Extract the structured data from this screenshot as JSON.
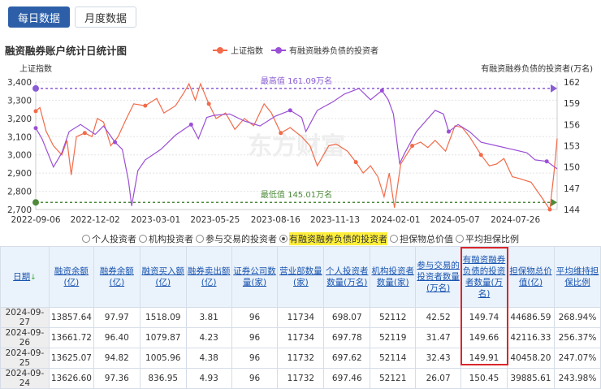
{
  "tabs": [
    {
      "label": "每日数据",
      "active": true
    },
    {
      "label": "月度数据",
      "active": false
    }
  ],
  "chart_data": {
    "type": "line",
    "title": "融资融券账户统计日统计图",
    "legend": [
      "上证指数",
      "有融资融券负债的投资者"
    ],
    "ylabel_left": "上证指数",
    "ylabel_right": "有融资融券负债的投资者(万名)",
    "ylim_left": [
      2700,
      3400
    ],
    "ylim_right": [
      144,
      162
    ],
    "yticks_left": [
      "3,400",
      "3,300",
      "3,200",
      "3,100",
      "3,000",
      "2,900",
      "2,800",
      "2,700"
    ],
    "yticks_right": [
      "162",
      "159",
      "156",
      "153",
      "150",
      "147",
      "144"
    ],
    "xlim": [
      0,
      500
    ],
    "xticks": [
      {
        "i": 0,
        "label": "2022-09-06"
      },
      {
        "i": 57,
        "label": "2022-12-02"
      },
      {
        "i": 115,
        "label": "2023-03-01"
      },
      {
        "i": 172,
        "label": "2023-05-25"
      },
      {
        "i": 230,
        "label": "2023-08-16"
      },
      {
        "i": 287,
        "label": "2023-11-13"
      },
      {
        "i": 345,
        "label": "2024-02-01"
      },
      {
        "i": 402,
        "label": "2024-05-07"
      },
      {
        "i": 460,
        "label": "2024-07-26"
      }
    ],
    "max_label": "最高值 161.09万名",
    "max_value": 161.09,
    "min_label": "最低值 145.01万名",
    "min_value": 145.01,
    "colors": {
      "index": "#f26b4a",
      "investors": "#9b4fd6",
      "max": "#8a5cd6",
      "min": "#4c8a3a"
    },
    "series": [
      {
        "name": "上证指数",
        "axis": "left",
        "points": [
          [
            0,
            3240
          ],
          [
            4,
            3260
          ],
          [
            10,
            3130
          ],
          [
            17,
            3050
          ],
          [
            25,
            3000
          ],
          [
            30,
            3080
          ],
          [
            34,
            2890
          ],
          [
            39,
            3100
          ],
          [
            47,
            3120
          ],
          [
            54,
            3100
          ],
          [
            59,
            3200
          ],
          [
            65,
            3180
          ],
          [
            72,
            3050
          ],
          [
            79,
            3100
          ],
          [
            87,
            3200
          ],
          [
            94,
            3280
          ],
          [
            105,
            3270
          ],
          [
            116,
            3310
          ],
          [
            123,
            3230
          ],
          [
            134,
            3270
          ],
          [
            142,
            3340
          ],
          [
            147,
            3390
          ],
          [
            153,
            3300
          ],
          [
            158,
            3390
          ],
          [
            166,
            3280
          ],
          [
            173,
            3200
          ],
          [
            182,
            3230
          ],
          [
            191,
            3140
          ],
          [
            200,
            3200
          ],
          [
            209,
            3160
          ],
          [
            219,
            3280
          ],
          [
            226,
            3230
          ],
          [
            235,
            3120
          ],
          [
            244,
            3150
          ],
          [
            255,
            3100
          ],
          [
            263,
            3050
          ],
          [
            270,
            2940
          ],
          [
            281,
            3050
          ],
          [
            288,
            3060
          ],
          [
            299,
            3020
          ],
          [
            307,
            2960
          ],
          [
            314,
            2900
          ],
          [
            321,
            2940
          ],
          [
            328,
            2880
          ],
          [
            334,
            2770
          ],
          [
            339,
            2900
          ],
          [
            344,
            2710
          ],
          [
            350,
            2950
          ],
          [
            361,
            3050
          ],
          [
            369,
            3070
          ],
          [
            376,
            3040
          ],
          [
            383,
            3080
          ],
          [
            393,
            3020
          ],
          [
            402,
            3160
          ],
          [
            409,
            3150
          ],
          [
            416,
            3100
          ],
          [
            427,
            3000
          ],
          [
            435,
            2940
          ],
          [
            442,
            2950
          ],
          [
            449,
            2980
          ],
          [
            457,
            2880
          ],
          [
            464,
            2870
          ],
          [
            475,
            2850
          ],
          [
            486,
            2760
          ],
          [
            493,
            2700
          ],
          [
            497,
            2900
          ],
          [
            500,
            3090
          ]
        ]
      },
      {
        "name": "有融资融券负债的投资者",
        "axis": "right",
        "points": [
          [
            0,
            155.5
          ],
          [
            6,
            154
          ],
          [
            17,
            150
          ],
          [
            25,
            152
          ],
          [
            32,
            155
          ],
          [
            43,
            156
          ],
          [
            57,
            154.6
          ],
          [
            65,
            155.8
          ],
          [
            76,
            153.5
          ],
          [
            83,
            152.5
          ],
          [
            89,
            148
          ],
          [
            92,
            144.5
          ],
          [
            98,
            149.5
          ],
          [
            105,
            151
          ],
          [
            120,
            152.5
          ],
          [
            134,
            154.5
          ],
          [
            149,
            156
          ],
          [
            156,
            154
          ],
          [
            164,
            157
          ],
          [
            171,
            157.3
          ],
          [
            186,
            157.5
          ],
          [
            200,
            156.5
          ],
          [
            215,
            155.8
          ],
          [
            230,
            157.2
          ],
          [
            244,
            158
          ],
          [
            255,
            157
          ],
          [
            259,
            155
          ],
          [
            270,
            158
          ],
          [
            285,
            159.2
          ],
          [
            296,
            160.3
          ],
          [
            310,
            161.09
          ],
          [
            321,
            159.5
          ],
          [
            332,
            160.8
          ],
          [
            338,
            159.5
          ],
          [
            343,
            157.5
          ],
          [
            349,
            150.5
          ],
          [
            354,
            152
          ],
          [
            365,
            155
          ],
          [
            383,
            158
          ],
          [
            391,
            157.5
          ],
          [
            396,
            155
          ],
          [
            405,
            156
          ],
          [
            416,
            155
          ],
          [
            427,
            153.5
          ],
          [
            442,
            153
          ],
          [
            457,
            152.5
          ],
          [
            471,
            152
          ],
          [
            479,
            151
          ],
          [
            490,
            150.8
          ],
          [
            500,
            149.74
          ]
        ]
      }
    ]
  },
  "radios": [
    {
      "label": "个人投资者",
      "selected": false
    },
    {
      "label": "机构投资者",
      "selected": false
    },
    {
      "label": "参与交易的投资者",
      "selected": false
    },
    {
      "label": "有融资融券负债的投资者",
      "selected": true
    },
    {
      "label": "担保物总价值",
      "selected": false
    },
    {
      "label": "平均担保比例",
      "selected": false
    }
  ],
  "table": {
    "headers": [
      "日期",
      "融资余额(亿)",
      "融券余额(亿)",
      "融资买入额(亿)",
      "融券卖出额(亿)",
      "证券公司数量(家)",
      "营业部数量(家)",
      "个人投资者数量(万名)",
      "机构投资者数量(家)",
      "参与交易的投资者数量(万名)",
      "有融资融券负债的投资者数量(万名)",
      "担保物总价值(亿)",
      "平均维持担保比例"
    ],
    "sort_icon": "↓",
    "rows": [
      [
        "2024-09-27",
        "13857.64",
        "97.97",
        "1518.09",
        "3.81",
        "96",
        "11734",
        "698.07",
        "52112",
        "42.52",
        "149.74",
        "44686.59",
        "268.94%"
      ],
      [
        "2024-09-26",
        "13661.72",
        "96.40",
        "1079.87",
        "4.23",
        "96",
        "11734",
        "697.78",
        "52119",
        "31.47",
        "149.66",
        "42116.33",
        "256.37%"
      ],
      [
        "2024-09-25",
        "13625.07",
        "94.82",
        "1005.96",
        "4.38",
        "96",
        "11732",
        "697.62",
        "52114",
        "32.43",
        "149.91",
        "40458.20",
        "247.07%"
      ],
      [
        "2024-09-24",
        "13626.60",
        "97.36",
        "836.95",
        "4.93",
        "96",
        "11732",
        "697.46",
        "52121",
        "26.07",
        "150.45",
        "39885.61",
        "243.98%"
      ]
    ]
  }
}
